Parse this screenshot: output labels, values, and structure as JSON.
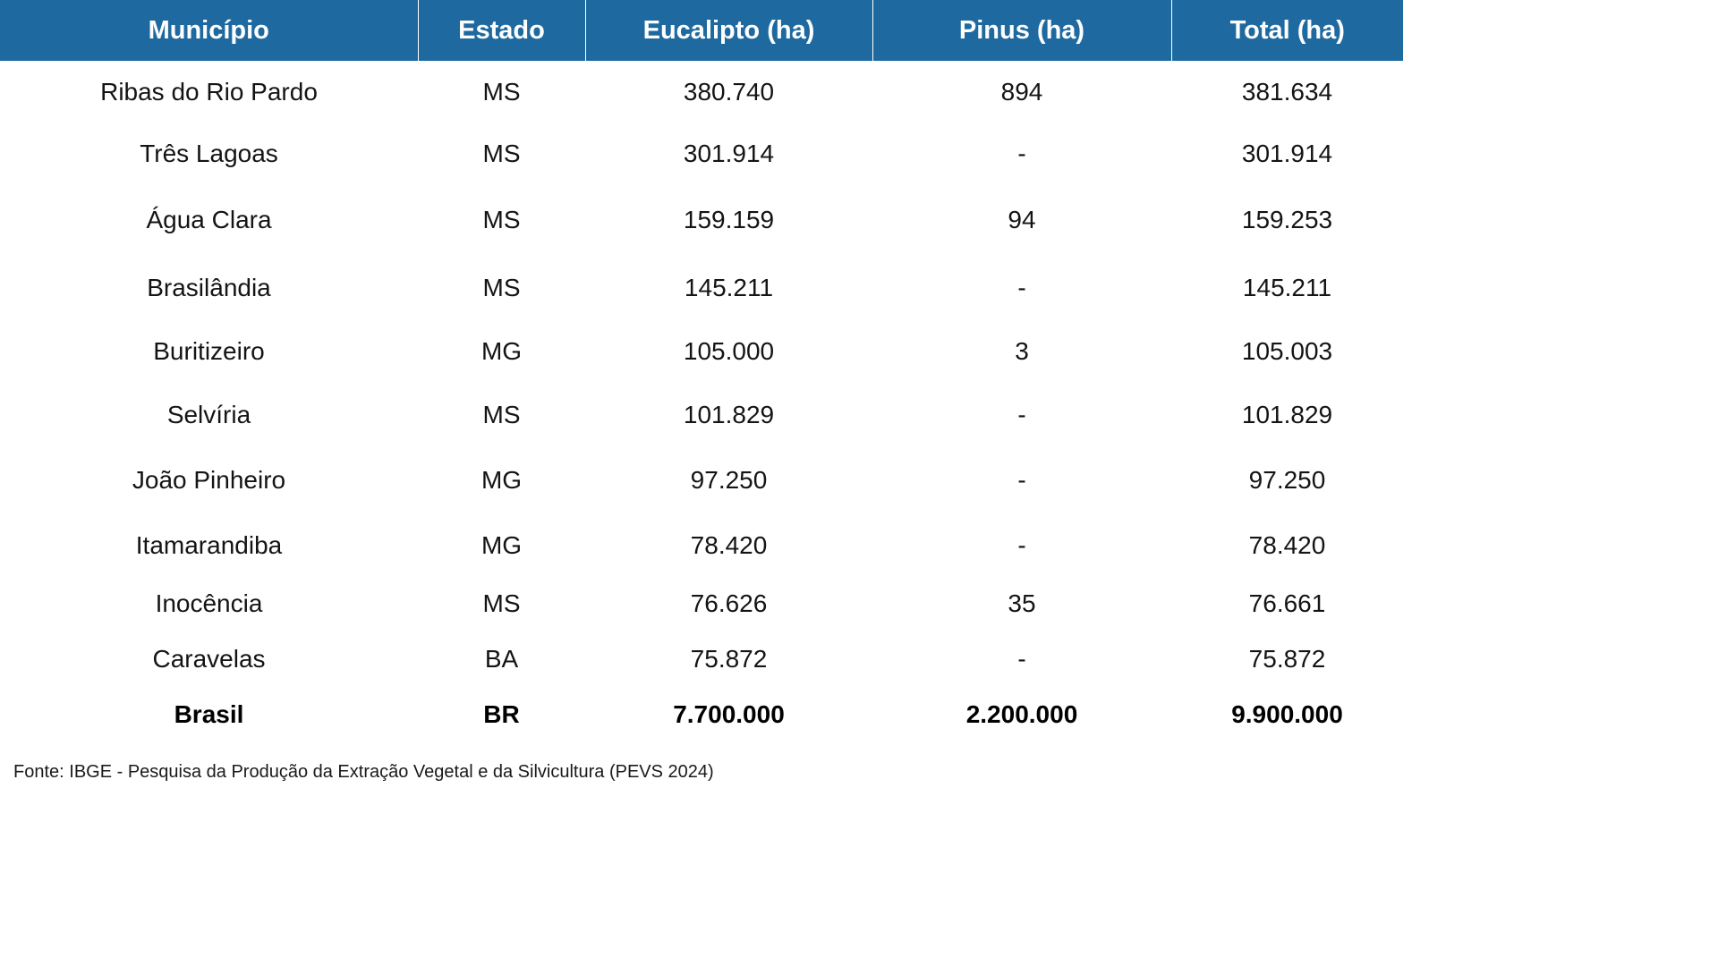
{
  "table": {
    "headers": [
      "Município",
      "Estado",
      "Eucalipto (ha)",
      "Pinus (ha)",
      "Total (ha)"
    ],
    "rows": [
      [
        "Ribas do Rio Pardo",
        "MS",
        "380.740",
        "894",
        "381.634"
      ],
      [
        "Três Lagoas",
        "MS",
        "301.914",
        "-",
        "301.914"
      ],
      [
        "Água Clara",
        "MS",
        "159.159",
        "94",
        "159.253"
      ],
      [
        "Brasilândia",
        "MS",
        "145.211",
        "-",
        "145.211"
      ],
      [
        "Buritizeiro",
        "MG",
        "105.000",
        "3",
        "105.003"
      ],
      [
        "Selvíria",
        "MS",
        "101.829",
        "-",
        "101.829"
      ],
      [
        "João Pinheiro",
        "MG",
        "97.250",
        "-",
        "97.250"
      ],
      [
        "Itamarandiba",
        "MG",
        "78.420",
        "-",
        "78.420"
      ],
      [
        "Inocência",
        "MS",
        "76.626",
        "35",
        "76.661"
      ],
      [
        "Caravelas",
        "BA",
        "75.872",
        "-",
        "75.872"
      ]
    ],
    "total": [
      "Brasil",
      "BR",
      "7.700.000",
      "2.200.000",
      "9.900.000"
    ]
  },
  "source": "Fonte: IBGE - Pesquisa da Produção da Extração Vegetal e da Silvicultura (PEVS 2024)",
  "colors": {
    "header_bg": "#1e6aa0",
    "header_text": "#ffffff",
    "body_text": "#141414"
  }
}
